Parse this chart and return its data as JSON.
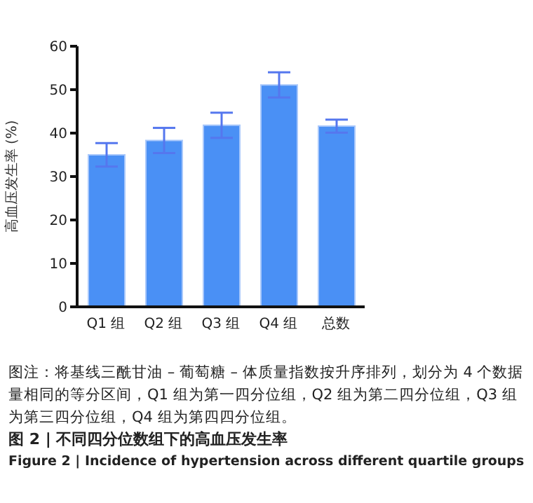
{
  "chart_data": {
    "type": "bar",
    "title": "图 2 | 不同四分位数组下的高血压发生率",
    "subtitle": "Figure 2 | Incidence of hypertension across different quartile groups",
    "ylabel": "高血压发生率 (%)",
    "annotations": [
      "图注：将基线三酰甘油 – 葡萄糖 – 体质量指数按升序排列，划分为 4 个数据量相同的等分区间，Q1 组为第一四分位组，Q2 组为第二四分位组，Q3 组为第三四分位组，Q4 组为第四四分位组。"
    ],
    "categories": [
      "Q1 组",
      "Q2 组",
      "Q3 组",
      "Q4 组",
      "总数"
    ],
    "values": [
      35.0,
      38.3,
      41.8,
      51.1,
      41.6
    ],
    "errors": [
      2.7,
      2.9,
      2.9,
      2.9,
      1.5
    ],
    "color": "#4a90f5",
    "ylim": [
      0,
      60
    ],
    "yticks": [
      0,
      10,
      20,
      30,
      40,
      50,
      60
    ],
    "grid": false
  }
}
